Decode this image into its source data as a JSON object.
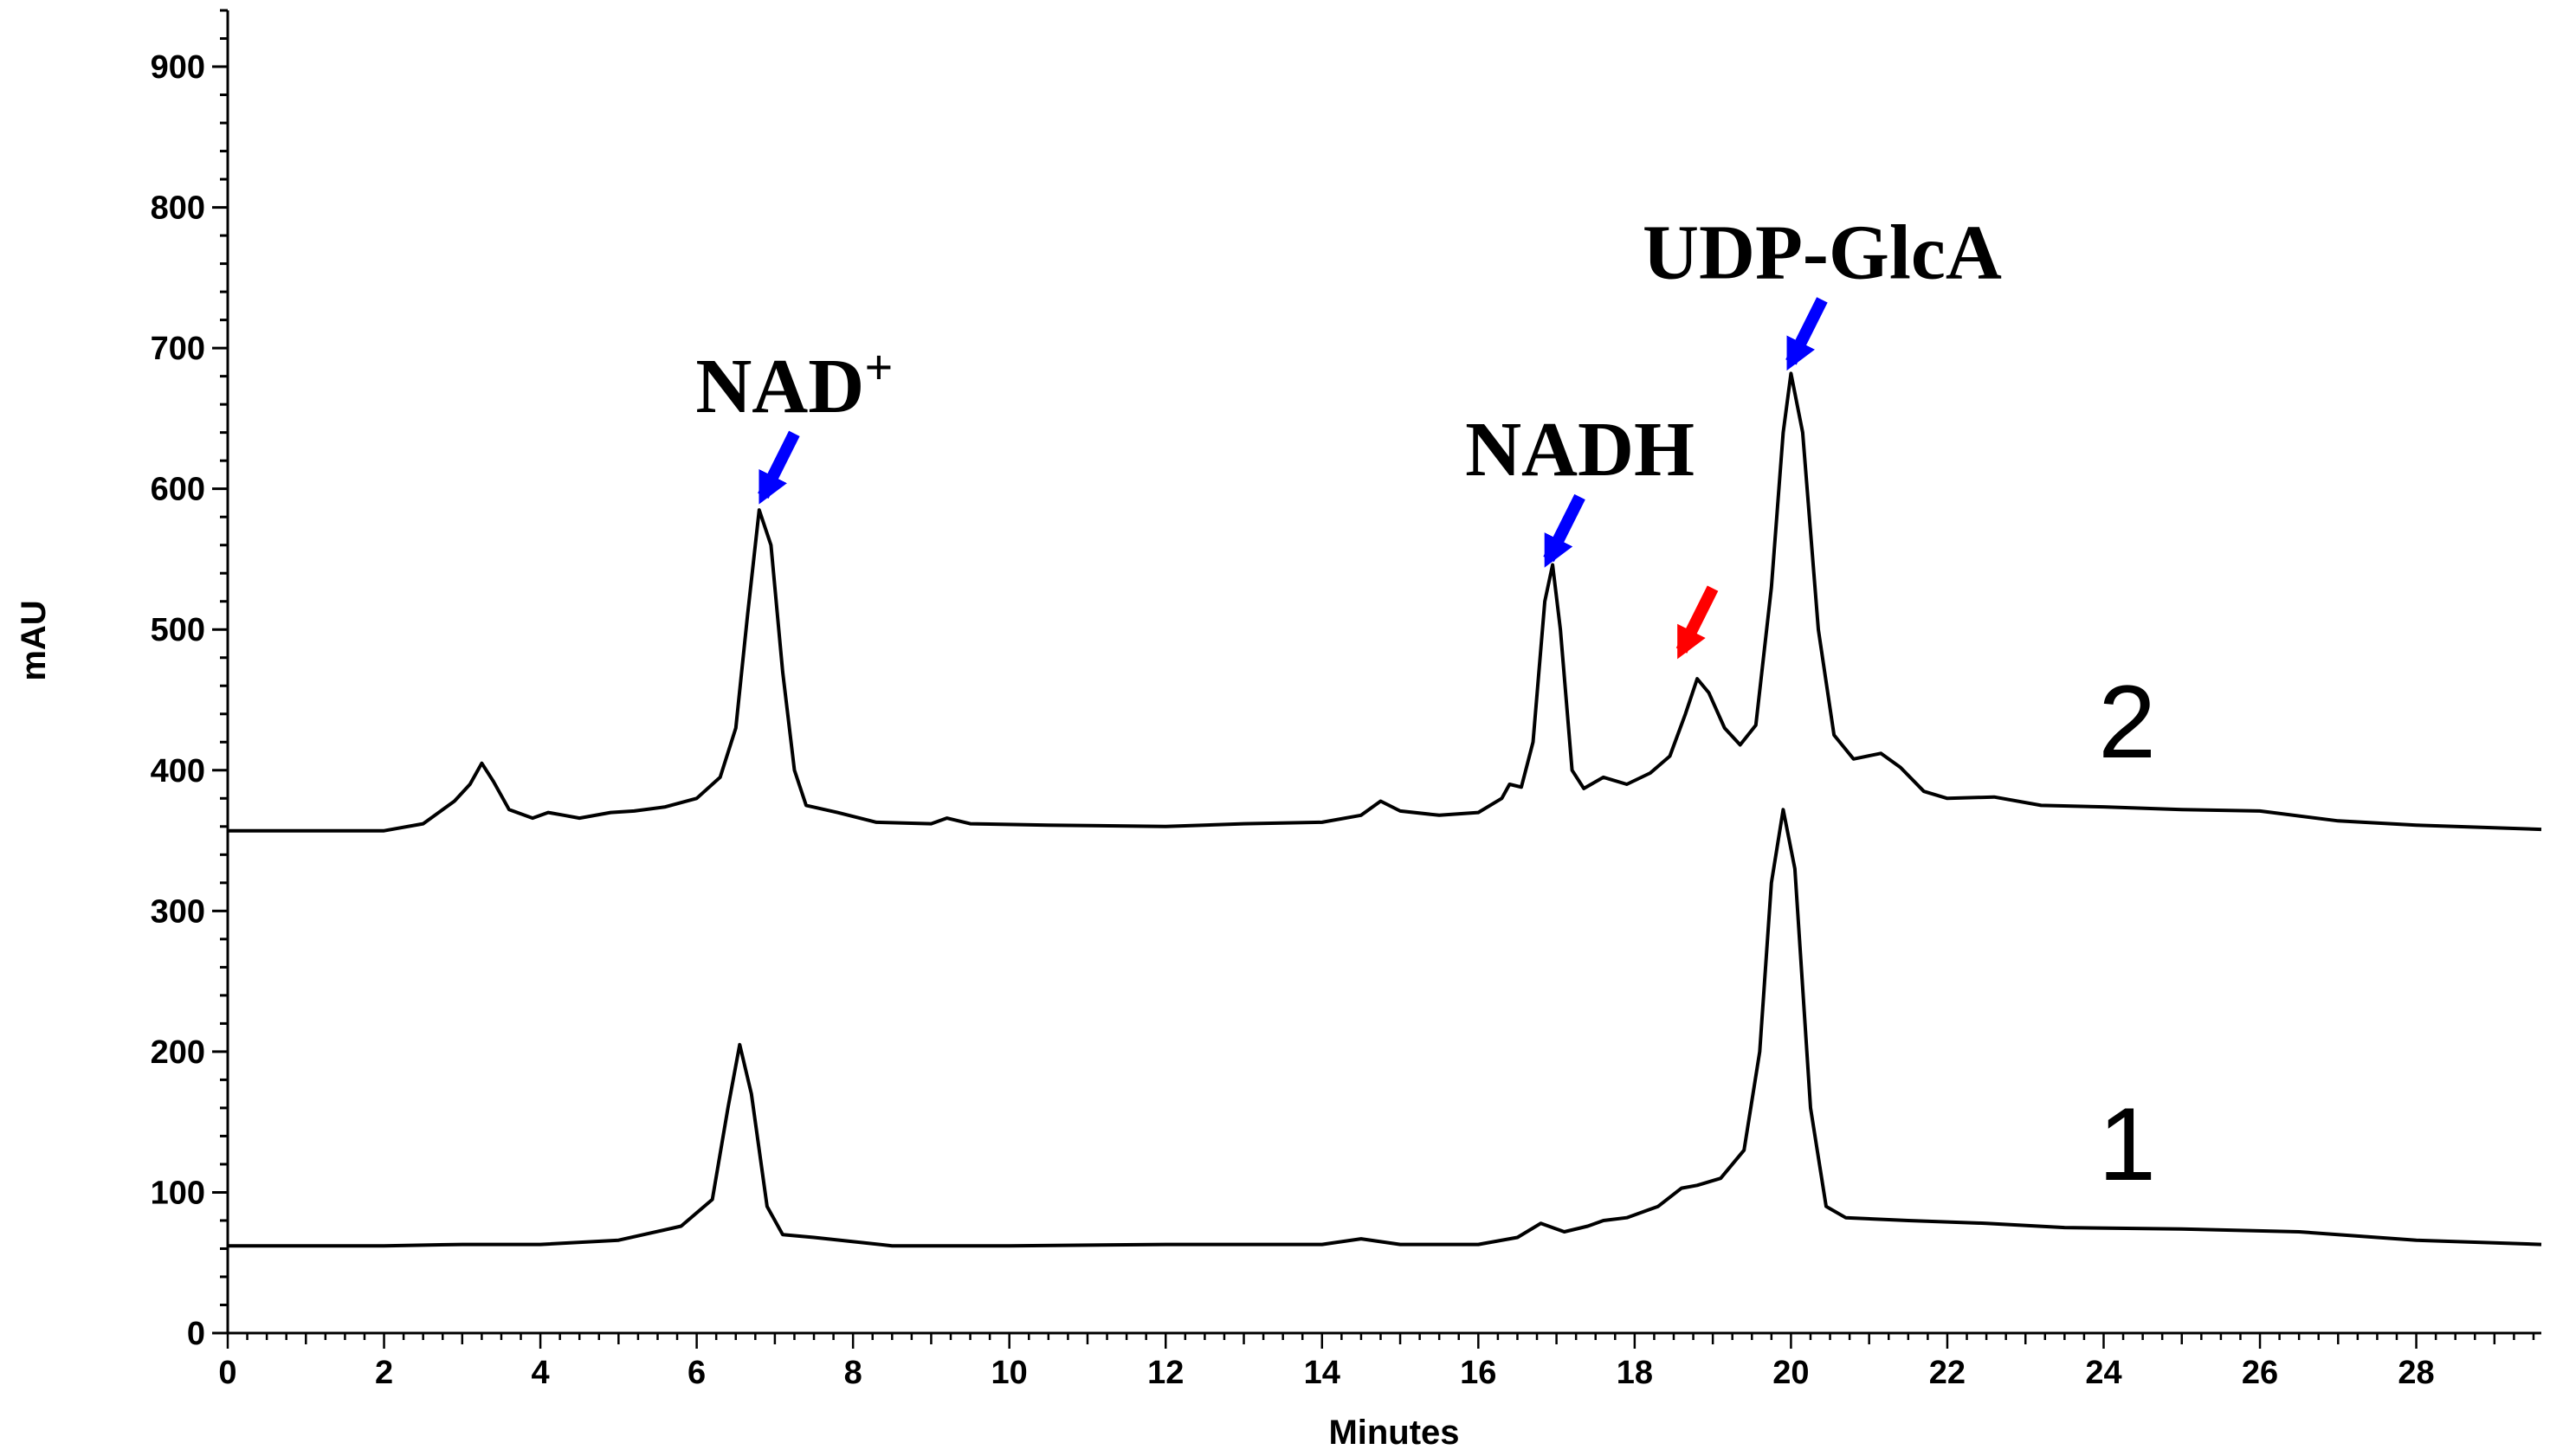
{
  "chart_data": {
    "type": "line",
    "xlabel": "Minutes",
    "ylabel": "mAU",
    "xlim": [
      0,
      29.6
    ],
    "ylim": [
      0,
      940
    ],
    "x_ticks": [
      0,
      2,
      4,
      6,
      8,
      10,
      12,
      14,
      16,
      18,
      20,
      22,
      24,
      26,
      28
    ],
    "y_ticks": [
      0,
      100,
      200,
      300,
      400,
      500,
      600,
      700,
      800,
      900
    ],
    "series": [
      {
        "name": "2",
        "color": "#000000",
        "points": [
          [
            0,
            357
          ],
          [
            2,
            357
          ],
          [
            2.5,
            362
          ],
          [
            2.9,
            378
          ],
          [
            3.1,
            390
          ],
          [
            3.25,
            405
          ],
          [
            3.4,
            392
          ],
          [
            3.6,
            372
          ],
          [
            3.9,
            366
          ],
          [
            4.1,
            370
          ],
          [
            4.3,
            368
          ],
          [
            4.5,
            366
          ],
          [
            4.9,
            370
          ],
          [
            5.2,
            371
          ],
          [
            5.6,
            374
          ],
          [
            6.0,
            380
          ],
          [
            6.3,
            395
          ],
          [
            6.5,
            430
          ],
          [
            6.65,
            510
          ],
          [
            6.8,
            585
          ],
          [
            6.95,
            560
          ],
          [
            7.1,
            470
          ],
          [
            7.25,
            400
          ],
          [
            7.4,
            375
          ],
          [
            7.8,
            370
          ],
          [
            8.3,
            363
          ],
          [
            9.0,
            362
          ],
          [
            9.2,
            366
          ],
          [
            9.5,
            362
          ],
          [
            10.5,
            361
          ],
          [
            12,
            360
          ],
          [
            13.0,
            362
          ],
          [
            14.0,
            363
          ],
          [
            14.5,
            368
          ],
          [
            14.75,
            378
          ],
          [
            15.0,
            371
          ],
          [
            15.5,
            368
          ],
          [
            16.0,
            370
          ],
          [
            16.3,
            380
          ],
          [
            16.4,
            390
          ],
          [
            16.55,
            388
          ],
          [
            16.7,
            420
          ],
          [
            16.85,
            520
          ],
          [
            16.95,
            546
          ],
          [
            17.05,
            500
          ],
          [
            17.2,
            400
          ],
          [
            17.35,
            387
          ],
          [
            17.6,
            395
          ],
          [
            17.9,
            390
          ],
          [
            18.2,
            398
          ],
          [
            18.45,
            410
          ],
          [
            18.65,
            440
          ],
          [
            18.8,
            465
          ],
          [
            18.95,
            455
          ],
          [
            19.15,
            430
          ],
          [
            19.35,
            418
          ],
          [
            19.55,
            432
          ],
          [
            19.75,
            530
          ],
          [
            19.9,
            640
          ],
          [
            20.0,
            682
          ],
          [
            20.15,
            640
          ],
          [
            20.35,
            500
          ],
          [
            20.55,
            425
          ],
          [
            20.8,
            408
          ],
          [
            21.15,
            412
          ],
          [
            21.4,
            402
          ],
          [
            21.7,
            385
          ],
          [
            22.0,
            380
          ],
          [
            22.6,
            381
          ],
          [
            23.2,
            375
          ],
          [
            24,
            374
          ],
          [
            25,
            372
          ],
          [
            26,
            371
          ],
          [
            27,
            364
          ],
          [
            28,
            361
          ],
          [
            29.6,
            358
          ]
        ]
      },
      {
        "name": "1",
        "color": "#000000",
        "points": [
          [
            0,
            62
          ],
          [
            2,
            62
          ],
          [
            3,
            63
          ],
          [
            4,
            63
          ],
          [
            5,
            66
          ],
          [
            5.8,
            76
          ],
          [
            6.2,
            95
          ],
          [
            6.4,
            160
          ],
          [
            6.55,
            205
          ],
          [
            6.7,
            170
          ],
          [
            6.9,
            90
          ],
          [
            7.1,
            70
          ],
          [
            7.5,
            68
          ],
          [
            8.5,
            62
          ],
          [
            10,
            62
          ],
          [
            12,
            63
          ],
          [
            14,
            63
          ],
          [
            14.5,
            67
          ],
          [
            15,
            63
          ],
          [
            16,
            63
          ],
          [
            16.5,
            68
          ],
          [
            16.8,
            78
          ],
          [
            17.1,
            72
          ],
          [
            17.4,
            76
          ],
          [
            17.6,
            80
          ],
          [
            17.9,
            82
          ],
          [
            18.3,
            90
          ],
          [
            18.6,
            103
          ],
          [
            18.8,
            105
          ],
          [
            19.1,
            110
          ],
          [
            19.4,
            130
          ],
          [
            19.6,
            200
          ],
          [
            19.75,
            320
          ],
          [
            19.9,
            372
          ],
          [
            20.05,
            330
          ],
          [
            20.25,
            160
          ],
          [
            20.45,
            90
          ],
          [
            20.7,
            82
          ],
          [
            21.5,
            80
          ],
          [
            22.5,
            78
          ],
          [
            23.5,
            75
          ],
          [
            25,
            74
          ],
          [
            26.5,
            72
          ],
          [
            28,
            66
          ],
          [
            29.6,
            63
          ]
        ]
      }
    ],
    "annotations": [
      {
        "text": "NAD",
        "superscript": "+",
        "arrow_tip": [
          6.85,
          595
        ],
        "arrow_color": "#0000ff"
      },
      {
        "text": "NADH",
        "arrow_tip": [
          16.9,
          550
        ],
        "arrow_color": "#0000ff"
      },
      {
        "text": "",
        "arrow_tip": [
          18.6,
          485
        ],
        "arrow_color": "#ff0000"
      },
      {
        "text": "UDP-GlcA",
        "arrow_tip": [
          20.0,
          690
        ],
        "arrow_color": "#0000ff"
      }
    ],
    "grid": false,
    "legend": "none"
  }
}
